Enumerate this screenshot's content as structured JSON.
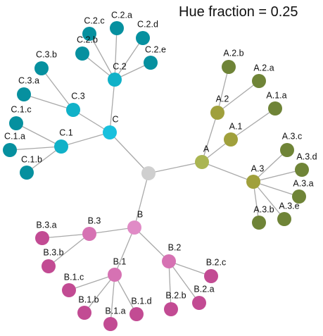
{
  "title": "Hue fraction = 0.25",
  "colors": {
    "edge": "#a9a9a9",
    "root": "#cfcfcf",
    "group_a": "#aab552",
    "group_a_child": "#a0a03c",
    "group_a_leaf": "#6f8437",
    "group_b": "#e08bc6",
    "group_b_child": "#d672b3",
    "group_b_leaf": "#c24b93",
    "group_c": "#18c0dd",
    "group_c_child": "#10b1c8",
    "group_c_leaf": "#06909f"
  },
  "tree": {
    "id": "root",
    "label": "",
    "children": [
      {
        "id": "A",
        "label": "A",
        "children": [
          {
            "id": "A.1",
            "label": "A.1",
            "children": [
              {
                "id": "A.1.a",
                "label": "A.1.a",
                "children": []
              }
            ]
          },
          {
            "id": "A.2",
            "label": "A.2",
            "children": [
              {
                "id": "A.2.a",
                "label": "A.2.a",
                "children": []
              },
              {
                "id": "A.2.b",
                "label": "A.2.b",
                "children": []
              }
            ]
          },
          {
            "id": "A.3",
            "label": "A.3",
            "children": [
              {
                "id": "A.3.a",
                "label": "A.3.a",
                "children": []
              },
              {
                "id": "A.3.b",
                "label": "A.3.b",
                "children": []
              },
              {
                "id": "A.3.c",
                "label": "A.3.c",
                "children": []
              },
              {
                "id": "A.3.d",
                "label": "A.3.d",
                "children": []
              },
              {
                "id": "A.3.e",
                "label": "A.3.e",
                "children": []
              }
            ]
          }
        ]
      },
      {
        "id": "B",
        "label": "B",
        "children": [
          {
            "id": "B.1",
            "label": "B.1",
            "children": [
              {
                "id": "B.1.a",
                "label": "B.1.a",
                "children": []
              },
              {
                "id": "B.1.b",
                "label": "B.1.b",
                "children": []
              },
              {
                "id": "B.1.c",
                "label": "B.1.c",
                "children": []
              },
              {
                "id": "B.1.d",
                "label": "B.1.d",
                "children": []
              }
            ]
          },
          {
            "id": "B.2",
            "label": "B.2",
            "children": [
              {
                "id": "B.2.a",
                "label": "B.2.a",
                "children": []
              },
              {
                "id": "B.2.b",
                "label": "B.2.b",
                "children": []
              },
              {
                "id": "B.2.c",
                "label": "B.2.c",
                "children": []
              }
            ]
          },
          {
            "id": "B.3",
            "label": "B.3",
            "children": [
              {
                "id": "B.3.a",
                "label": "B.3.a",
                "children": []
              },
              {
                "id": "B.3.b",
                "label": "B.3.b",
                "children": []
              }
            ]
          }
        ]
      },
      {
        "id": "C",
        "label": "C",
        "children": [
          {
            "id": "C.1",
            "label": "C.1",
            "children": [
              {
                "id": "C.1.a",
                "label": "C.1.a",
                "children": []
              },
              {
                "id": "C.1.b",
                "label": "C.1.b",
                "children": []
              },
              {
                "id": "C.1.c",
                "label": "C.1.c",
                "children": []
              }
            ]
          },
          {
            "id": "C.2",
            "label": "C.2",
            "children": [
              {
                "id": "C.2.a",
                "label": "C.2.a",
                "children": []
              },
              {
                "id": "C.2.b",
                "label": "C.2.b",
                "children": []
              },
              {
                "id": "C.2.c",
                "label": "C.2.c",
                "children": []
              },
              {
                "id": "C.2.d",
                "label": "C.2.d",
                "children": []
              },
              {
                "id": "C.2.e",
                "label": "C.2.e",
                "children": []
              }
            ]
          },
          {
            "id": "C.3",
            "label": "C.3",
            "children": [
              {
                "id": "C.3.a",
                "label": "C.3.a",
                "children": []
              },
              {
                "id": "C.3.b",
                "label": "C.3.b",
                "children": []
              }
            ]
          }
        ]
      }
    ]
  }
}
